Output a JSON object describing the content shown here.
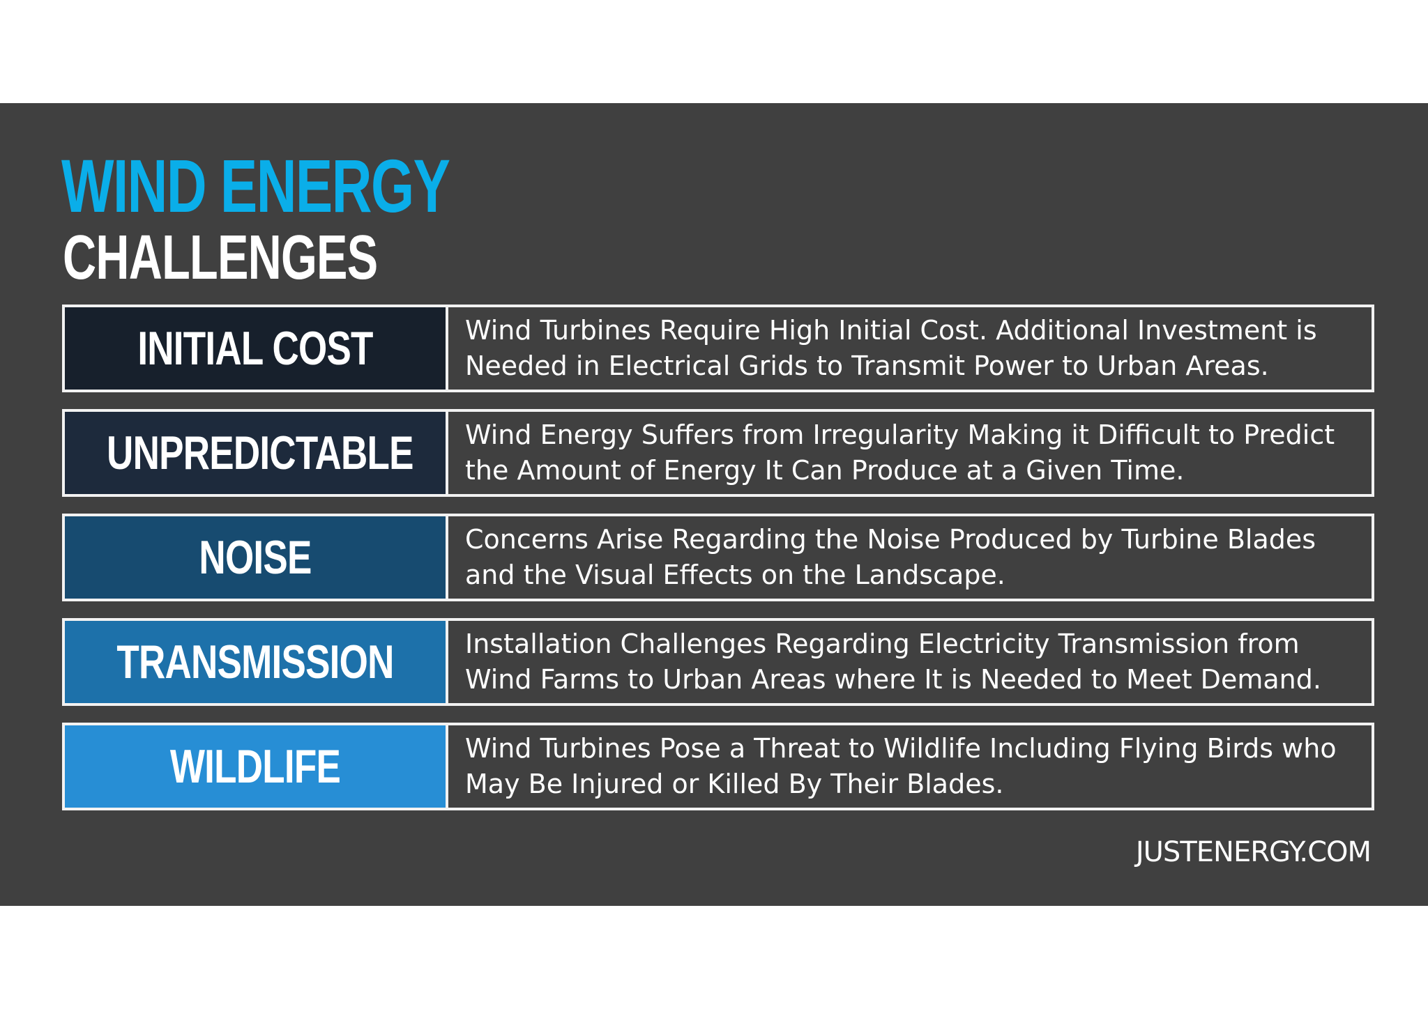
{
  "title": {
    "line1": "WIND ENERGY",
    "line2": "CHALLENGES"
  },
  "rows": [
    {
      "label": "INITIAL COST",
      "description": "Wind Turbines Require High Initial Cost. Additional Investment is\nNeeded in Electrical Grids to Transmit Power to Urban Areas.",
      "color": "#17202c"
    },
    {
      "label": "UNPREDICTABLE",
      "description": "Wind Energy Suffers from Irregularity Making it Difficult to Predict\nthe Amount of Energy It Can Produce at a Given Time.",
      "color": "#1d2a3c"
    },
    {
      "label": "NOISE",
      "description": "Concerns Arise Regarding the Noise Produced by Turbine Blades\nand the Visual Effects on the Landscape.",
      "color": "#174b70"
    },
    {
      "label": "TRANSMISSION",
      "description": "Installation Challenges Regarding Electricity Transmission from\nWind Farms to Urban Areas where It is Needed to Meet Demand.",
      "color": "#1d71aa"
    },
    {
      "label": "WILDLIFE",
      "description": "Wind Turbines Pose a Threat to Wildlife Including Flying Birds who\nMay Be Injured or Killed By Their Blades.",
      "color": "#278ed5"
    }
  ],
  "footer": "JUSTENERGY.COM",
  "colors": {
    "background_panel": "#404040",
    "title_accent": "#0aaee9",
    "border": "#f2f2f2",
    "text": "#ffffff"
  }
}
